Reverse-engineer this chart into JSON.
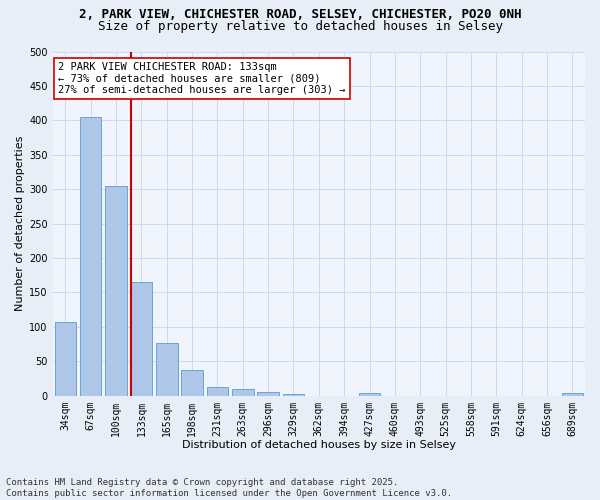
{
  "title1": "2, PARK VIEW, CHICHESTER ROAD, SELSEY, CHICHESTER, PO20 0NH",
  "title2": "Size of property relative to detached houses in Selsey",
  "xlabel": "Distribution of detached houses by size in Selsey",
  "ylabel": "Number of detached properties",
  "footer1": "Contains HM Land Registry data © Crown copyright and database right 2025.",
  "footer2": "Contains public sector information licensed under the Open Government Licence v3.0.",
  "annotation_line1": "2 PARK VIEW CHICHESTER ROAD: 133sqm",
  "annotation_line2": "← 73% of detached houses are smaller (809)",
  "annotation_line3": "27% of semi-detached houses are larger (303) →",
  "bar_categories": [
    "34sqm",
    "67sqm",
    "100sqm",
    "133sqm",
    "165sqm",
    "198sqm",
    "231sqm",
    "263sqm",
    "296sqm",
    "329sqm",
    "362sqm",
    "394sqm",
    "427sqm",
    "460sqm",
    "493sqm",
    "525sqm",
    "558sqm",
    "591sqm",
    "624sqm",
    "656sqm",
    "689sqm"
  ],
  "bar_values": [
    107,
    405,
    304,
    165,
    77,
    38,
    12,
    10,
    6,
    3,
    0,
    0,
    4,
    0,
    0,
    0,
    0,
    0,
    0,
    0,
    4
  ],
  "bar_color": "#aec6e8",
  "bar_edge_color": "#5b9bd5",
  "red_line_index": 3,
  "ylim": [
    0,
    500
  ],
  "yticks": [
    0,
    50,
    100,
    150,
    200,
    250,
    300,
    350,
    400,
    450,
    500
  ],
  "bg_color": "#e8eef8",
  "plot_bg_color": "#f0f4fc",
  "grid_color": "#c8d4e8",
  "red_color": "#cc0000",
  "annotation_box_color": "#ffffff",
  "annotation_box_edge": "#cc0000",
  "title1_fontsize": 9,
  "title2_fontsize": 9,
  "axis_label_fontsize": 8,
  "tick_fontsize": 7,
  "annotation_fontsize": 7.5,
  "footer_fontsize": 6.5
}
